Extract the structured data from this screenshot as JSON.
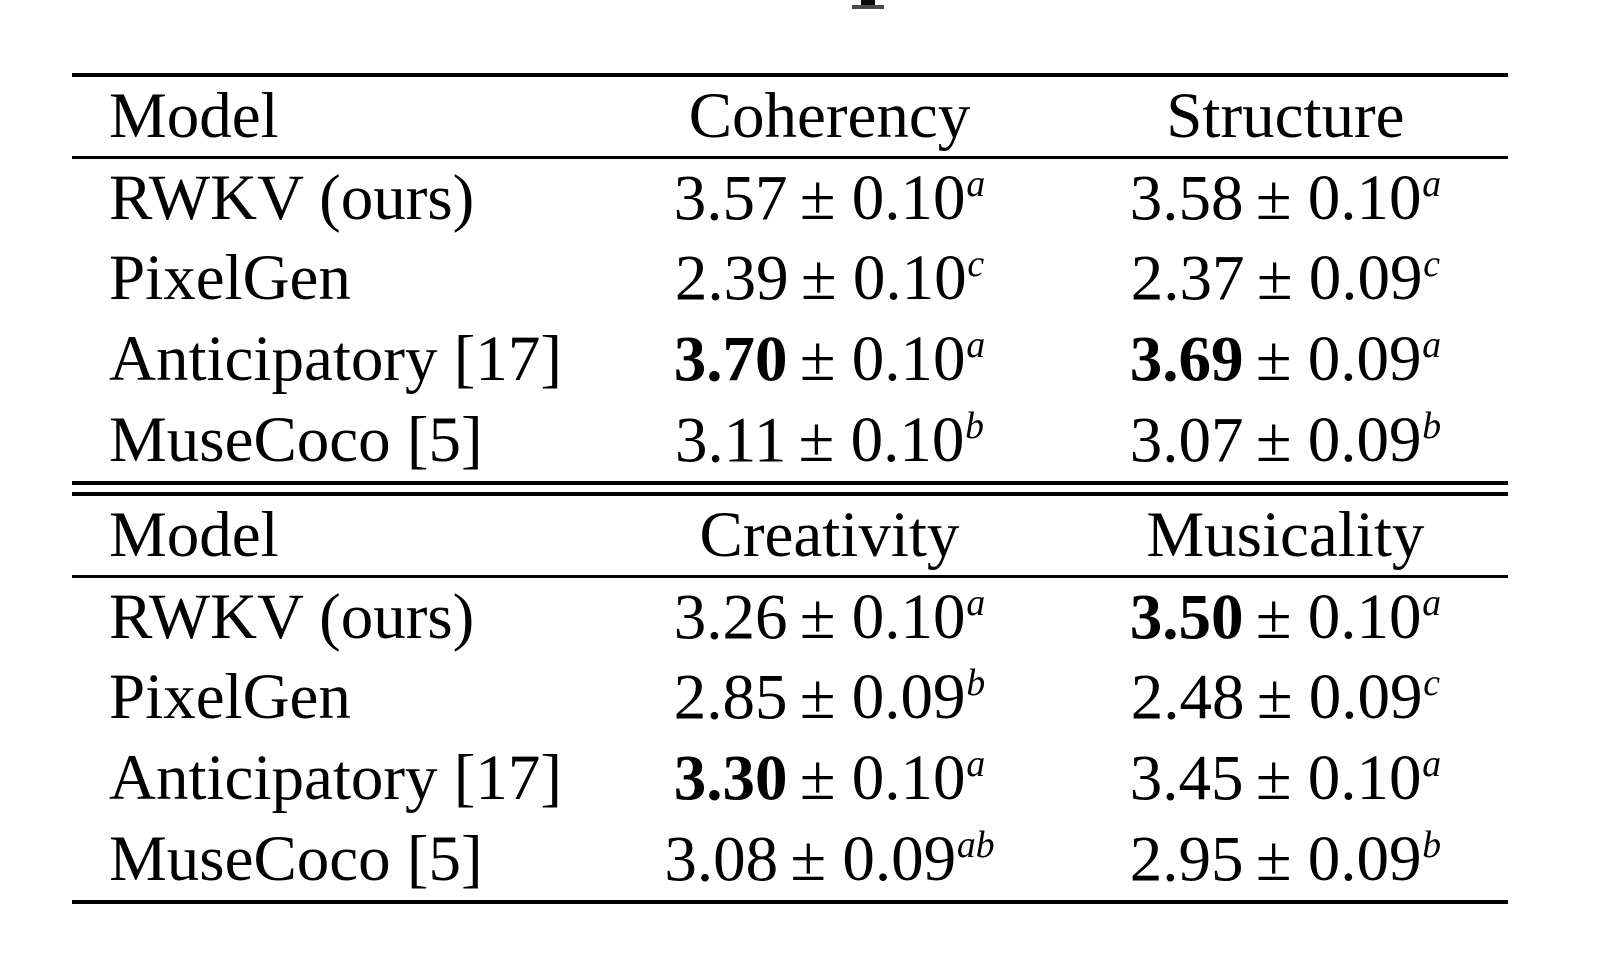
{
  "page": {
    "background_color": "#ffffff",
    "text_color": "#000000"
  },
  "tables": [
    {
      "columns": [
        "Model",
        "Coherency",
        "Structure"
      ],
      "rows": [
        {
          "model": "RWKV (ours)",
          "cells": [
            {
              "mean": "3.57",
              "rest": "± 0.10",
              "sup": "a",
              "bold": false
            },
            {
              "mean": "3.58",
              "rest": "± 0.10",
              "sup": "a",
              "bold": false
            }
          ]
        },
        {
          "model": "PixelGen",
          "cells": [
            {
              "mean": "2.39",
              "rest": "± 0.10",
              "sup": "c",
              "bold": false
            },
            {
              "mean": "2.37",
              "rest": "± 0.09",
              "sup": "c",
              "bold": false
            }
          ]
        },
        {
          "model": "Anticipatory [17]",
          "cells": [
            {
              "mean": "3.70",
              "rest": "± 0.10",
              "sup": "a",
              "bold": true
            },
            {
              "mean": "3.69",
              "rest": "± 0.09",
              "sup": "a",
              "bold": true
            }
          ]
        },
        {
          "model": "MuseCoco [5]",
          "cells": [
            {
              "mean": "3.11",
              "rest": "± 0.10",
              "sup": "b",
              "bold": false
            },
            {
              "mean": "3.07",
              "rest": "± 0.09",
              "sup": "b",
              "bold": false
            }
          ]
        }
      ]
    },
    {
      "columns": [
        "Model",
        "Creativity",
        "Musicality"
      ],
      "rows": [
        {
          "model": "RWKV (ours)",
          "cells": [
            {
              "mean": "3.26",
              "rest": "± 0.10",
              "sup": "a",
              "bold": false
            },
            {
              "mean": "3.50",
              "rest": "± 0.10",
              "sup": "a",
              "bold": true
            }
          ]
        },
        {
          "model": "PixelGen",
          "cells": [
            {
              "mean": "2.85",
              "rest": "± 0.09",
              "sup": "b",
              "bold": false
            },
            {
              "mean": "2.48",
              "rest": "± 0.09",
              "sup": "c",
              "bold": false
            }
          ]
        },
        {
          "model": "Anticipatory [17]",
          "cells": [
            {
              "mean": "3.30",
              "rest": "± 0.10",
              "sup": "a",
              "bold": true
            },
            {
              "mean": "3.45",
              "rest": "± 0.10",
              "sup": "a",
              "bold": false
            }
          ]
        },
        {
          "model": "MuseCoco [5]",
          "cells": [
            {
              "mean": "3.08",
              "rest": "± 0.09",
              "sup": "ab",
              "bold": false
            },
            {
              "mean": "2.95",
              "rest": "± 0.09",
              "sup": "b",
              "bold": false
            }
          ]
        }
      ]
    }
  ]
}
